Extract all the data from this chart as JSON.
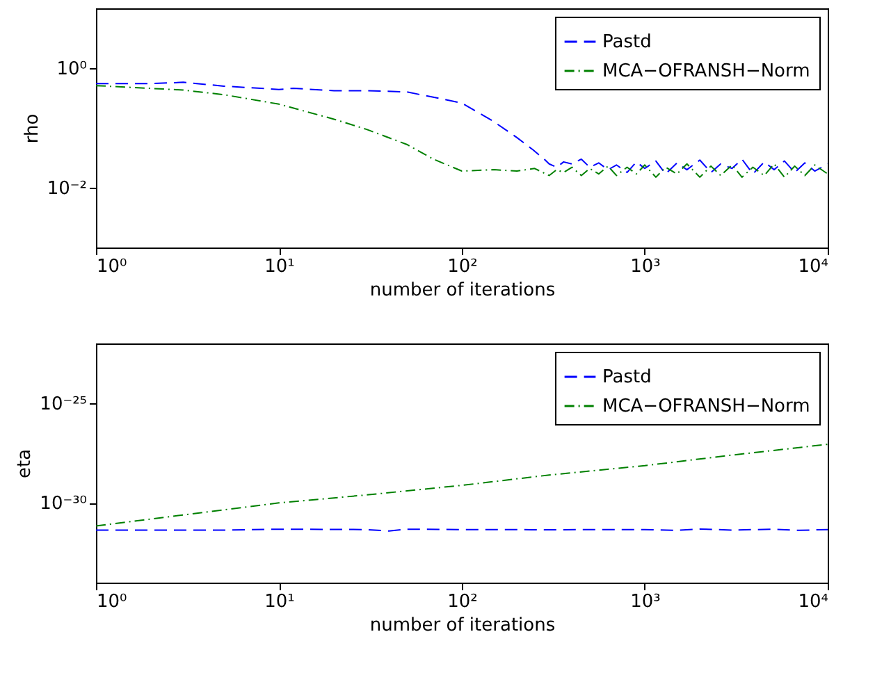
{
  "chart_data": [
    {
      "type": "line",
      "xlabel": "number of iterations",
      "ylabel": "rho",
      "log": "xy",
      "grid": false,
      "legend": "top right",
      "xlim": [
        1,
        10000
      ],
      "xticks": [
        {
          "value": 1,
          "label": "10⁰"
        },
        {
          "value": 10,
          "label": "10¹"
        },
        {
          "value": 100,
          "label": "10²"
        },
        {
          "value": 1000,
          "label": "10³"
        },
        {
          "value": 10000,
          "label": "10⁴"
        }
      ],
      "ylim": [
        0.001,
        10
      ],
      "yticks": [
        {
          "value": 1,
          "label": "10⁰"
        },
        {
          "value": 0.01,
          "label": "10⁻²"
        }
      ],
      "series": [
        {
          "name": "Pastd",
          "color": "#0000ff",
          "line_style": "dashed",
          "x": [
            1,
            2,
            3,
            5,
            10,
            12,
            20,
            30,
            50,
            80,
            100,
            148,
            200,
            245,
            282,
            300,
            330,
            360,
            400,
            450,
            500,
            560,
            630,
            700,
            800,
            900,
            1000,
            1150,
            1300,
            1500,
            1700,
            2000,
            2300,
            2600,
            3000,
            3400,
            3900,
            4500,
            5100,
            5800,
            6600,
            7500,
            8500,
            10000
          ],
          "values": [
            0.55,
            0.55,
            0.58,
            0.5,
            0.44,
            0.46,
            0.42,
            0.42,
            0.4,
            0.3,
            0.26,
            0.13,
            0.069,
            0.043,
            0.03,
            0.025,
            0.022,
            0.027,
            0.025,
            0.03,
            0.022,
            0.026,
            0.02,
            0.024,
            0.018,
            0.027,
            0.021,
            0.028,
            0.017,
            0.026,
            0.02,
            0.029,
            0.018,
            0.025,
            0.021,
            0.03,
            0.017,
            0.027,
            0.02,
            0.028,
            0.018,
            0.026,
            0.019,
            0.025
          ]
        },
        {
          "name": "MCA−OFRANSH−Norm",
          "color": "#008000",
          "line_style": "dotted",
          "x": [
            1,
            3,
            5,
            10,
            20,
            30,
            50,
            70,
            100,
            150,
            200,
            250,
            300,
            330,
            360,
            400,
            450,
            500,
            560,
            630,
            700,
            800,
            900,
            1000,
            1150,
            1300,
            1500,
            1700,
            2000,
            2300,
            2600,
            3000,
            3400,
            3900,
            4500,
            5100,
            5800,
            6600,
            7500,
            8500,
            10000
          ],
          "values": [
            0.51,
            0.43,
            0.36,
            0.25,
            0.14,
            0.095,
            0.053,
            0.03,
            0.019,
            0.02,
            0.019,
            0.021,
            0.016,
            0.02,
            0.018,
            0.022,
            0.016,
            0.021,
            0.017,
            0.023,
            0.016,
            0.022,
            0.017,
            0.024,
            0.015,
            0.022,
            0.017,
            0.025,
            0.015,
            0.023,
            0.016,
            0.024,
            0.015,
            0.022,
            0.016,
            0.025,
            0.015,
            0.023,
            0.016,
            0.024,
            0.017
          ]
        }
      ]
    },
    {
      "type": "line",
      "xlabel": "number of iterations",
      "ylabel": "eta",
      "log": "xy",
      "grid": false,
      "legend": "top right",
      "xlim": [
        1,
        10000
      ],
      "xticks": [
        {
          "value": 1,
          "label": "10⁰"
        },
        {
          "value": 10,
          "label": "10¹"
        },
        {
          "value": 100,
          "label": "10²"
        },
        {
          "value": 1000,
          "label": "10³"
        },
        {
          "value": 10000,
          "label": "10⁴"
        }
      ],
      "ylim": [
        1e-34,
        1e-22
      ],
      "yticks": [
        {
          "value": 1e-25,
          "label": "10⁻²⁵"
        },
        {
          "value": 1e-30,
          "label": "10⁻³⁰"
        }
      ],
      "series": [
        {
          "name": "Pastd",
          "color": "#0000ff",
          "line_style": "dashed",
          "x": [
            1,
            5,
            10,
            30,
            40,
            50,
            100,
            300,
            1000,
            1500,
            2000,
            3000,
            5000,
            7000,
            10000
          ],
          "values": [
            4.3e-32,
            4.3e-32,
            4.8e-32,
            4.6e-32,
            3.9e-32,
            4.8e-32,
            4.6e-32,
            4.5e-32,
            4.6e-32,
            4.2e-32,
            4.9e-32,
            4.3e-32,
            4.8e-32,
            4.2e-32,
            4.6e-32
          ]
        },
        {
          "name": "MCA−OFRANSH−Norm",
          "color": "#008000",
          "line_style": "dotted",
          "x": [
            1,
            3,
            10,
            30,
            100,
            300,
            1000,
            3000,
            10000
          ],
          "values": [
            7e-32,
            2.5e-31,
            1e-30,
            2.5e-30,
            7.6e-30,
            2.5e-29,
            7.4e-29,
            2.5e-28,
            8.7e-28
          ]
        }
      ]
    }
  ]
}
